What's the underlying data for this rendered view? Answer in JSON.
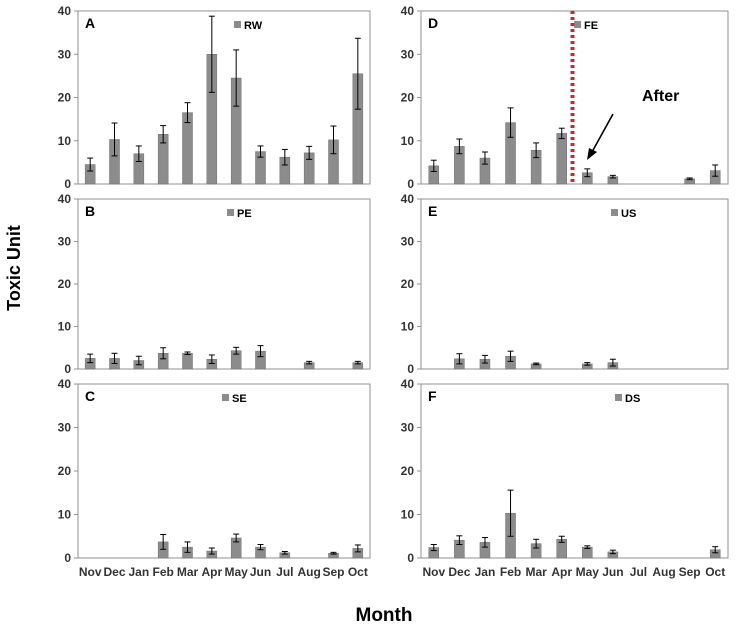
{
  "ylabel": "Toxic Unit",
  "xlabel": "Month",
  "colors": {
    "bar": "#8c8c8c",
    "bar_edge": "#6f6f6f",
    "frame": "#909090",
    "marker": "#e02020"
  },
  "chart_data": [
    {
      "panel": "A",
      "legend": "RW",
      "type": "bar",
      "ylim": [
        0,
        40
      ],
      "yticks": [
        0,
        10,
        20,
        30,
        40
      ],
      "categories": [
        "Nov",
        "Dec",
        "Jan",
        "Feb",
        "Mar",
        "Apr",
        "May",
        "Jun",
        "Jul",
        "Aug",
        "Sep",
        "Oct"
      ],
      "values": [
        4.5,
        10.3,
        7.0,
        11.5,
        16.5,
        30.0,
        24.5,
        7.5,
        6.2,
        7.2,
        10.2,
        25.5
      ],
      "errors": [
        1.5,
        3.8,
        1.8,
        2.0,
        2.3,
        8.8,
        6.5,
        1.3,
        1.8,
        1.5,
        3.2,
        8.2
      ]
    },
    {
      "panel": "B",
      "legend": "PE",
      "type": "bar",
      "ylim": [
        0,
        40
      ],
      "yticks": [
        0,
        10,
        20,
        30,
        40
      ],
      "categories": [
        "Nov",
        "Dec",
        "Jan",
        "Feb",
        "Mar",
        "Apr",
        "May",
        "Jun",
        "Jul",
        "Aug",
        "Sep",
        "Oct"
      ],
      "values": [
        2.5,
        2.5,
        2.0,
        3.7,
        3.7,
        2.3,
        4.3,
        4.2,
        null,
        1.5,
        null,
        1.5
      ],
      "errors": [
        1.0,
        1.2,
        1.0,
        1.3,
        0.3,
        1.0,
        0.8,
        1.3,
        null,
        0.3,
        null,
        0.3
      ]
    },
    {
      "panel": "C",
      "legend": "SE",
      "type": "bar",
      "ylim": [
        0,
        40
      ],
      "yticks": [
        0,
        10,
        20,
        30,
        40
      ],
      "categories": [
        "Nov",
        "Dec",
        "Jan",
        "Feb",
        "Mar",
        "Apr",
        "May",
        "Jun",
        "Jul",
        "Aug",
        "Sep",
        "Oct"
      ],
      "values": [
        null,
        null,
        null,
        3.7,
        2.5,
        1.6,
        4.6,
        2.5,
        1.2,
        null,
        1.1,
        2.2
      ],
      "errors": [
        null,
        null,
        null,
        1.7,
        1.2,
        0.7,
        0.9,
        0.6,
        0.3,
        null,
        0.2,
        0.8
      ]
    },
    {
      "panel": "D",
      "legend": "FE",
      "type": "bar",
      "ylim": [
        0,
        40
      ],
      "yticks": [
        0,
        10,
        20,
        30,
        40
      ],
      "categories": [
        "Nov",
        "Dec",
        "Jan",
        "Feb",
        "Mar",
        "Apr",
        "May",
        "Jun",
        "Jul",
        "Aug",
        "Sep",
        "Oct"
      ],
      "values": [
        4.2,
        8.7,
        6.0,
        14.2,
        7.8,
        11.7,
        2.6,
        1.7,
        null,
        null,
        1.2,
        3.1
      ],
      "errors": [
        1.3,
        1.7,
        1.4,
        3.4,
        1.7,
        1.2,
        0.9,
        0.3,
        null,
        null,
        0.2,
        1.3
      ],
      "divider_after": "Apr",
      "annotation": "After"
    },
    {
      "panel": "E",
      "legend": "US",
      "type": "bar",
      "ylim": [
        0,
        40
      ],
      "yticks": [
        0,
        10,
        20,
        30,
        40
      ],
      "categories": [
        "Nov",
        "Dec",
        "Jan",
        "Feb",
        "Mar",
        "Apr",
        "May",
        "Jun",
        "Jul",
        "Aug",
        "Sep",
        "Oct"
      ],
      "values": [
        null,
        2.4,
        2.3,
        3.0,
        1.2,
        null,
        1.2,
        1.5,
        null,
        null,
        null,
        null
      ],
      "errors": [
        null,
        1.2,
        0.9,
        1.2,
        0.2,
        null,
        0.3,
        0.8,
        null,
        null,
        null,
        null
      ]
    },
    {
      "panel": "F",
      "legend": "DS",
      "type": "bar",
      "ylim": [
        0,
        40
      ],
      "yticks": [
        0,
        10,
        20,
        30,
        40
      ],
      "categories": [
        "Nov",
        "Dec",
        "Jan",
        "Feb",
        "Mar",
        "Apr",
        "May",
        "Jun",
        "Jul",
        "Aug",
        "Sep",
        "Oct"
      ],
      "values": [
        2.4,
        4.1,
        3.6,
        10.3,
        3.3,
        4.3,
        2.5,
        1.4,
        null,
        null,
        null,
        1.9
      ],
      "errors": [
        0.7,
        1.0,
        1.1,
        5.3,
        1.0,
        0.7,
        0.3,
        0.4,
        null,
        null,
        null,
        0.7
      ]
    }
  ]
}
